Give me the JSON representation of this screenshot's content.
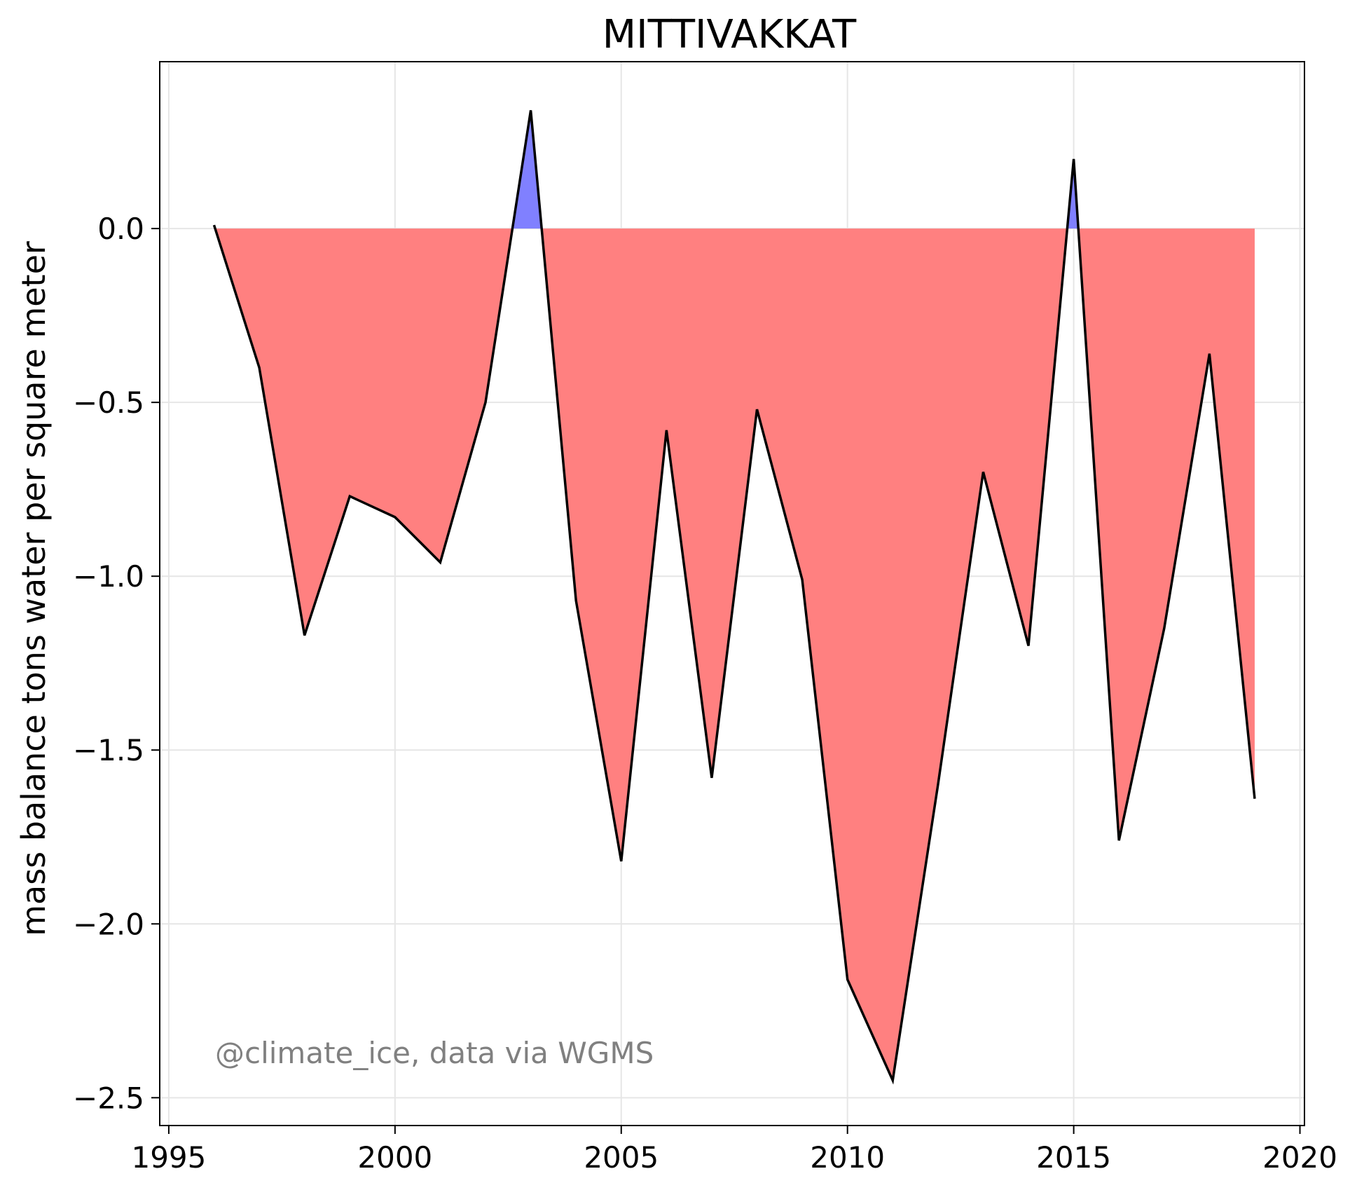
{
  "chart_data": {
    "type": "area",
    "title": "MITTIVAKKAT",
    "xlabel": "",
    "ylabel": "mass balance tons water per square meter",
    "annotation": "@climate_ice, data via WGMS",
    "xlim": [
      1994.8,
      2020.1
    ],
    "ylim": [
      -2.58,
      0.48
    ],
    "xticks": [
      1995,
      2000,
      2005,
      2010,
      2015,
      2020
    ],
    "yticks": [
      0.0,
      -0.5,
      -1.0,
      -1.5,
      -2.0,
      -2.5
    ],
    "ytick_labels": [
      "0.0",
      "−0.5",
      "−1.0",
      "−1.5",
      "−2.0",
      "−2.5"
    ],
    "grid": true,
    "series": [
      {
        "x": [
          1996,
          1997,
          1998,
          1999,
          2000,
          2001,
          2002,
          2003,
          2004,
          2005,
          2006,
          2007,
          2008,
          2009,
          2010,
          2011,
          2012,
          2013,
          2014,
          2015,
          2016,
          2017,
          2018,
          2019
        ],
        "values": [
          0.01,
          -0.4,
          -1.17,
          -0.77,
          -0.83,
          -0.96,
          -0.5,
          0.34,
          -1.07,
          -1.82,
          -0.58,
          -1.58,
          -0.52,
          -1.01,
          -2.16,
          -2.45,
          -1.6,
          -0.7,
          -1.2,
          0.2,
          -1.76,
          -1.15,
          -0.36,
          -1.64
        ]
      }
    ],
    "colors": {
      "positive_fill": "#8080ff",
      "negative_fill": "#ff8080",
      "line": "#000000",
      "grid": "#e6e6e6",
      "annotation": "#808080"
    }
  }
}
